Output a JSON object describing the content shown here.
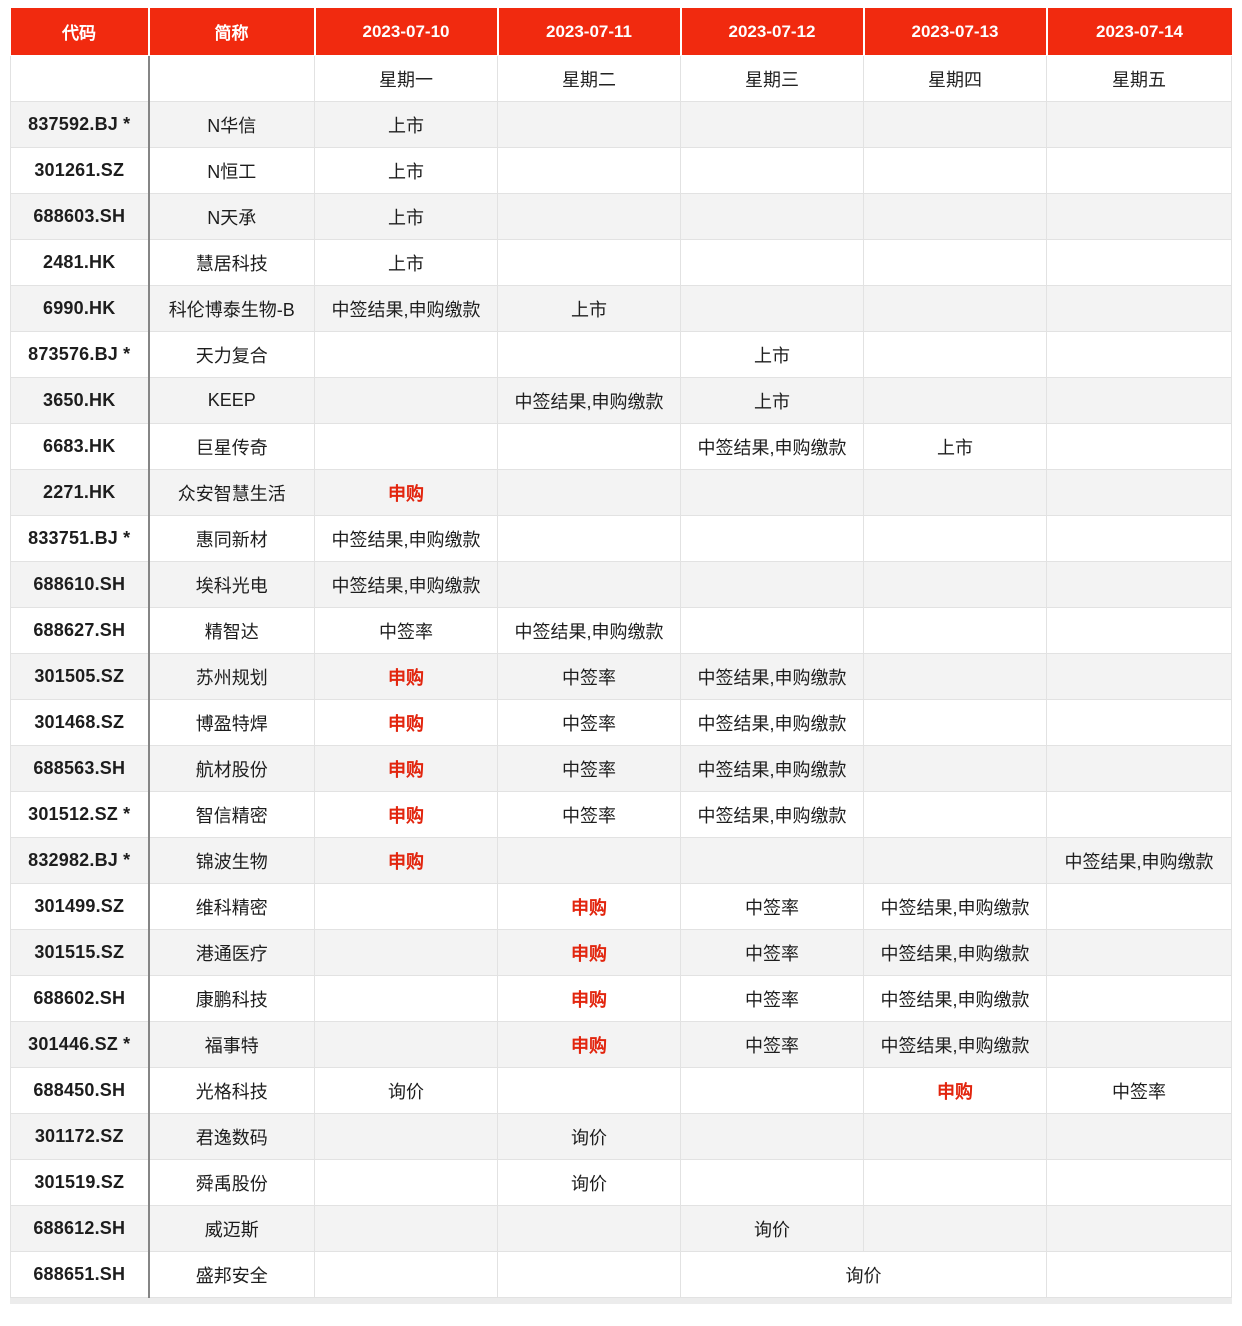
{
  "colors": {
    "header_bg": "#f12a0f",
    "header_text": "#ffffff",
    "red_status_text": "#e2250e",
    "stripe_row_bg": "#f3f3f3",
    "grid_line": "#e2e2e2",
    "code_divider": "#858585"
  },
  "table": {
    "columns": [
      {
        "label": "代码",
        "weekday": ""
      },
      {
        "label": "简称",
        "weekday": ""
      },
      {
        "label": "2023-07-10",
        "weekday": "星期一"
      },
      {
        "label": "2023-07-11",
        "weekday": "星期二"
      },
      {
        "label": "2023-07-12",
        "weekday": "星期三"
      },
      {
        "label": "2023-07-13",
        "weekday": "星期四"
      },
      {
        "label": "2023-07-14",
        "weekday": "星期五"
      }
    ],
    "status_labels": {
      "listed": "上市",
      "subscribe": "申购",
      "lottery_rate": "中签率",
      "lottery_result_payment": "中签结果,申购缴款",
      "inquiry": "询价"
    },
    "rows": [
      {
        "code": "837592.BJ *",
        "name": "N华信",
        "cells": [
          {
            "text": "上市"
          },
          {},
          {},
          {},
          {}
        ]
      },
      {
        "code": "301261.SZ",
        "name": "N恒工",
        "cells": [
          {
            "text": "上市"
          },
          {},
          {},
          {},
          {}
        ]
      },
      {
        "code": "688603.SH",
        "name": "N天承",
        "cells": [
          {
            "text": "上市"
          },
          {},
          {},
          {},
          {}
        ]
      },
      {
        "code": "2481.HK",
        "name": "慧居科技",
        "cells": [
          {
            "text": "上市"
          },
          {},
          {},
          {},
          {}
        ]
      },
      {
        "code": "6990.HK",
        "name": "科伦博泰生物-B",
        "cells": [
          {
            "text": "中签结果,申购缴款"
          },
          {
            "text": "上市"
          },
          {},
          {},
          {}
        ]
      },
      {
        "code": "873576.BJ *",
        "name": "天力复合",
        "cells": [
          {},
          {},
          {
            "text": "上市"
          },
          {},
          {}
        ]
      },
      {
        "code": "3650.HK",
        "name": "KEEP",
        "cells": [
          {},
          {
            "text": "中签结果,申购缴款"
          },
          {
            "text": "上市"
          },
          {},
          {}
        ]
      },
      {
        "code": "6683.HK",
        "name": "巨星传奇",
        "cells": [
          {},
          {},
          {
            "text": "中签结果,申购缴款"
          },
          {
            "text": "上市"
          },
          {}
        ]
      },
      {
        "code": "2271.HK",
        "name": "众安智慧生活",
        "cells": [
          {
            "text": "申购",
            "red": true
          },
          {},
          {},
          {},
          {}
        ]
      },
      {
        "code": "833751.BJ *",
        "name": "惠同新材",
        "cells": [
          {
            "text": "中签结果,申购缴款"
          },
          {},
          {},
          {},
          {}
        ]
      },
      {
        "code": "688610.SH",
        "name": "埃科光电",
        "cells": [
          {
            "text": "中签结果,申购缴款"
          },
          {},
          {},
          {},
          {}
        ]
      },
      {
        "code": "688627.SH",
        "name": "精智达",
        "cells": [
          {
            "text": "中签率"
          },
          {
            "text": "中签结果,申购缴款"
          },
          {},
          {},
          {}
        ]
      },
      {
        "code": "301505.SZ",
        "name": "苏州规划",
        "cells": [
          {
            "text": "申购",
            "red": true
          },
          {
            "text": "中签率"
          },
          {
            "text": "中签结果,申购缴款"
          },
          {},
          {}
        ]
      },
      {
        "code": "301468.SZ",
        "name": "博盈特焊",
        "cells": [
          {
            "text": "申购",
            "red": true
          },
          {
            "text": "中签率"
          },
          {
            "text": "中签结果,申购缴款"
          },
          {},
          {}
        ]
      },
      {
        "code": "688563.SH",
        "name": "航材股份",
        "cells": [
          {
            "text": "申购",
            "red": true
          },
          {
            "text": "中签率"
          },
          {
            "text": "中签结果,申购缴款"
          },
          {},
          {}
        ]
      },
      {
        "code": "301512.SZ *",
        "name": "智信精密",
        "cells": [
          {
            "text": "申购",
            "red": true
          },
          {
            "text": "中签率"
          },
          {
            "text": "中签结果,申购缴款"
          },
          {},
          {}
        ]
      },
      {
        "code": "832982.BJ *",
        "name": "锦波生物",
        "cells": [
          {
            "text": "申购",
            "red": true
          },
          {},
          {},
          {},
          {
            "text": "中签结果,申购缴款"
          }
        ]
      },
      {
        "code": "301499.SZ",
        "name": "维科精密",
        "cells": [
          {},
          {
            "text": "申购",
            "red": true
          },
          {
            "text": "中签率"
          },
          {
            "text": "中签结果,申购缴款"
          },
          {}
        ]
      },
      {
        "code": "301515.SZ",
        "name": "港通医疗",
        "cells": [
          {},
          {
            "text": "申购",
            "red": true
          },
          {
            "text": "中签率"
          },
          {
            "text": "中签结果,申购缴款"
          },
          {}
        ]
      },
      {
        "code": "688602.SH",
        "name": "康鹏科技",
        "cells": [
          {},
          {
            "text": "申购",
            "red": true
          },
          {
            "text": "中签率"
          },
          {
            "text": "中签结果,申购缴款"
          },
          {}
        ]
      },
      {
        "code": "301446.SZ *",
        "name": "福事特",
        "cells": [
          {},
          {
            "text": "申购",
            "red": true
          },
          {
            "text": "中签率"
          },
          {
            "text": "中签结果,申购缴款"
          },
          {}
        ]
      },
      {
        "code": "688450.SH",
        "name": "光格科技",
        "cells": [
          {
            "text": "询价"
          },
          {},
          {},
          {
            "text": "申购",
            "red": true
          },
          {
            "text": "中签率"
          }
        ]
      },
      {
        "code": "301172.SZ",
        "name": "君逸数码",
        "cells": [
          {},
          {
            "text": "询价"
          },
          {},
          {},
          {}
        ]
      },
      {
        "code": "301519.SZ",
        "name": "舜禹股份",
        "cells": [
          {},
          {
            "text": "询价"
          },
          {},
          {},
          {}
        ]
      },
      {
        "code": "688612.SH",
        "name": "威迈斯",
        "cells": [
          {},
          {},
          {
            "text": "询价"
          },
          {},
          {}
        ]
      },
      {
        "code": "688651.SH",
        "name": "盛邦安全",
        "cells": [
          {},
          {},
          {
            "text": "询价",
            "colspan": 2
          },
          {}
        ]
      }
    ]
  }
}
